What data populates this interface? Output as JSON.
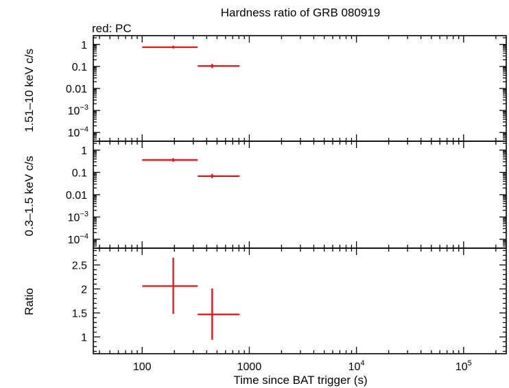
{
  "chart_data": {
    "type": "scatter",
    "title": "Hardness ratio of GRB 080919",
    "legend_note": "red: PC",
    "xlabel": "Time since BAT trigger (s)",
    "x_scale": "log",
    "xlim": [
      35,
      250000
    ],
    "x_tick_labels": [
      {
        "value": 100,
        "base": "100",
        "exp": ""
      },
      {
        "value": 1000,
        "base": "1000",
        "exp": ""
      },
      {
        "value": 10000,
        "base": "10",
        "exp": "4"
      },
      {
        "value": 100000,
        "base": "10",
        "exp": "5"
      }
    ],
    "series_color": "#ff0000",
    "panels": [
      {
        "id": "hard",
        "ylabel": "1.51–10 keV c/s",
        "y_scale": "log",
        "ylim": [
          4e-05,
          2.5
        ],
        "y_tick_labels": [
          {
            "value": 1,
            "base": "1",
            "exp": ""
          },
          {
            "value": 0.1,
            "base": "0.1",
            "exp": ""
          },
          {
            "value": 0.01,
            "base": "0.01",
            "exp": ""
          },
          {
            "value": 0.001,
            "base": "10",
            "exp": "−3"
          },
          {
            "value": 0.0001,
            "base": "10",
            "exp": "−4"
          }
        ],
        "points": [
          {
            "x": 195,
            "x_lo": 100,
            "x_hi": 330,
            "y": 0.75,
            "y_lo": 0.65,
            "y_hi": 0.88
          },
          {
            "x": 450,
            "x_lo": 330,
            "x_hi": 810,
            "y": 0.105,
            "y_lo": 0.085,
            "y_hi": 0.13
          }
        ]
      },
      {
        "id": "soft",
        "ylabel": "0.3–1.5 keV c/s",
        "y_scale": "log",
        "ylim": [
          4e-05,
          2.5
        ],
        "y_tick_labels": [
          {
            "value": 1,
            "base": "1",
            "exp": ""
          },
          {
            "value": 0.1,
            "base": "0.1",
            "exp": ""
          },
          {
            "value": 0.01,
            "base": "0.01",
            "exp": ""
          },
          {
            "value": 0.001,
            "base": "10",
            "exp": "−3"
          },
          {
            "value": 0.0001,
            "base": "10",
            "exp": "−4"
          }
        ],
        "points": [
          {
            "x": 195,
            "x_lo": 100,
            "x_hi": 330,
            "y": 0.36,
            "y_lo": 0.3,
            "y_hi": 0.43
          },
          {
            "x": 450,
            "x_lo": 330,
            "x_hi": 810,
            "y": 0.068,
            "y_lo": 0.055,
            "y_hi": 0.085
          }
        ]
      },
      {
        "id": "ratio",
        "ylabel": "Ratio",
        "y_scale": "linear",
        "ylim": [
          0.65,
          2.85
        ],
        "y_tick_labels": [
          {
            "value": 1,
            "base": "1",
            "exp": ""
          },
          {
            "value": 1.5,
            "base": "1.5",
            "exp": ""
          },
          {
            "value": 2,
            "base": "2",
            "exp": ""
          },
          {
            "value": 2.5,
            "base": "2.5",
            "exp": ""
          }
        ],
        "minor_step": 0.1,
        "points": [
          {
            "x": 195,
            "x_lo": 100,
            "x_hi": 330,
            "y": 2.06,
            "y_lo": 1.48,
            "y_hi": 2.65
          },
          {
            "x": 450,
            "x_lo": 330,
            "x_hi": 810,
            "y": 1.47,
            "y_lo": 0.94,
            "y_hi": 2.01
          }
        ]
      }
    ]
  }
}
